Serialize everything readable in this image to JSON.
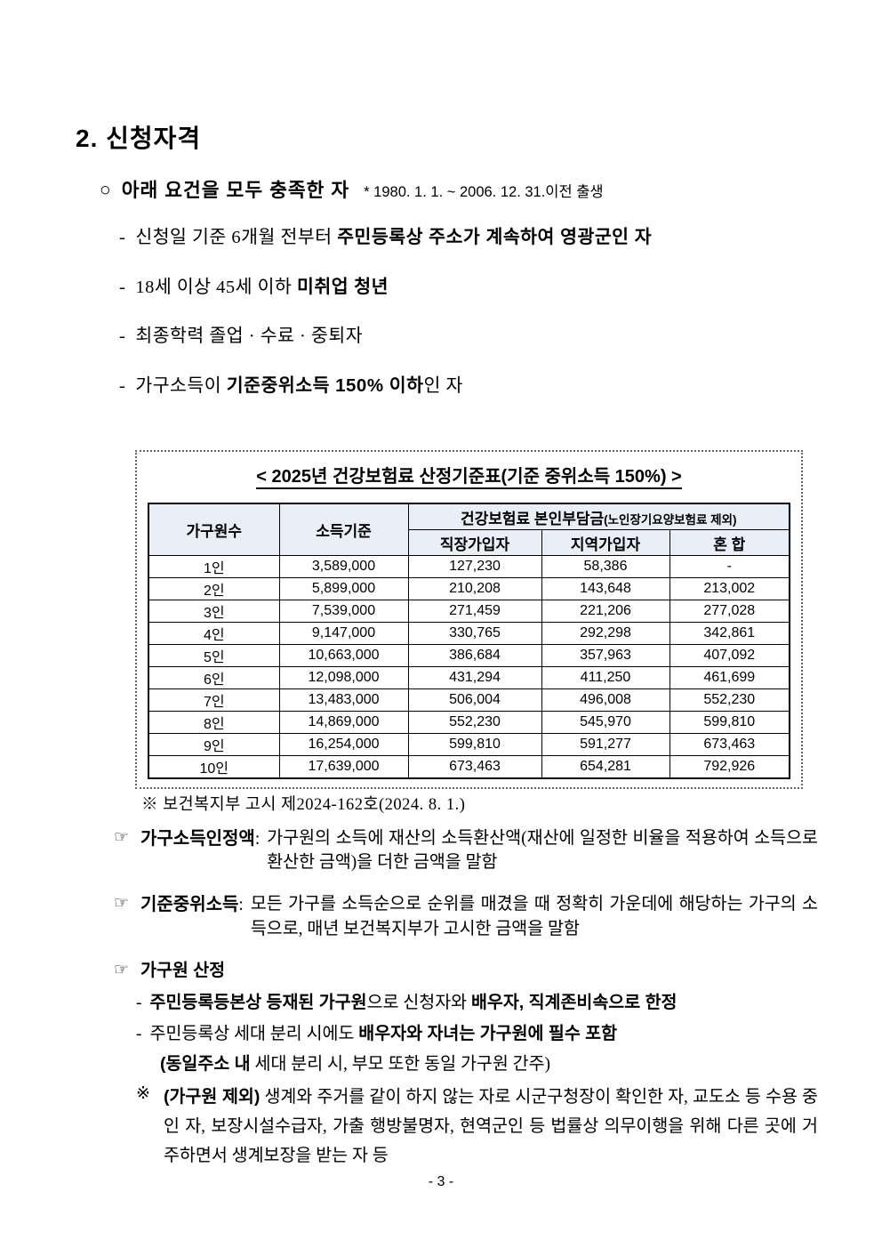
{
  "page": {
    "heading": "2. 신청자격",
    "page_number": "- 3 -"
  },
  "intro": {
    "bullet": "○",
    "text": "아래 요건을 모두 충족한 자",
    "note": "* 1980. 1. 1. ~ 2006. 12. 31.이전 출생"
  },
  "dash": "-",
  "requirements": [
    {
      "segments": [
        {
          "t": "신청일 기준 6개월 전부터 ",
          "b": 0
        },
        {
          "t": "주민등록상 주소가 계속하여 영광군인 자",
          "b": 1
        }
      ]
    },
    {
      "segments": [
        {
          "t": "18세 이상 45세 이하 ",
          "b": 0
        },
        {
          "t": "미취업 청년",
          "b": 1
        }
      ]
    },
    {
      "segments": [
        {
          "t": "최종학력 졸업 · 수료 · 중퇴자",
          "b": 0
        }
      ]
    },
    {
      "segments": [
        {
          "t": "가구소득이 ",
          "b": 0
        },
        {
          "t": "기준중위소득 150% 이하",
          "b": 1
        },
        {
          "t": "인 자",
          "b": 0
        }
      ]
    }
  ],
  "box": {
    "title": "< 2025년 건강보험료 산정기준표(기준 중위소득 150%) >",
    "table": {
      "header": {
        "household": "가구원수",
        "income": "소득기준",
        "group_main": "건강보험료 본인부담금",
        "group_sub": "(노인장기요양보험료 제외)",
        "subcols": {
          "employee": "직장가입자",
          "regional": "지역가입자",
          "mixed": "혼 합"
        }
      },
      "rows": [
        [
          "1인",
          "3,589,000",
          "127,230",
          "58,386",
          "-"
        ],
        [
          "2인",
          "5,899,000",
          "210,208",
          "143,648",
          "213,002"
        ],
        [
          "3인",
          "7,539,000",
          "271,459",
          "221,206",
          "277,028"
        ],
        [
          "4인",
          "9,147,000",
          "330,765",
          "292,298",
          "342,861"
        ],
        [
          "5인",
          "10,663,000",
          "386,684",
          "357,963",
          "407,092"
        ],
        [
          "6인",
          "12,098,000",
          "431,294",
          "411,250",
          "461,699"
        ],
        [
          "7인",
          "13,483,000",
          "506,004",
          "496,008",
          "552,230"
        ],
        [
          "8인",
          "14,869,000",
          "552,230",
          "545,970",
          "599,810"
        ],
        [
          "9인",
          "16,254,000",
          "599,810",
          "591,277",
          "673,463"
        ],
        [
          "10인",
          "17,639,000",
          "673,463",
          "654,281",
          "792,926"
        ]
      ]
    }
  },
  "notes": {
    "gosi": "※ 보건복지부 고시 제2024-162호(2024. 8. 1.)",
    "marker": "☞",
    "item1": {
      "title": "가구소득인정액",
      "colon": ":",
      "body": "가구원의 소득에 재산의 소득환산액(재산에 일정한 비율을 적용하여 소득으로 환산한 금액)을 더한 금액을 말함"
    },
    "item2": {
      "title": "기준중위소득",
      "colon": ":",
      "body": "모든 가구를 소득순으로 순위를 매겼을 때 정확히 가운데에 해당하는 가구의 소득으로, 매년 보건복지부가 고시한 금액을 말함"
    },
    "item3": {
      "title": "가구원 산정",
      "sub1": {
        "segments": [
          {
            "t": "주민등록등본상 등재된 가구원",
            "b": 1
          },
          {
            "t": "으로 신청자와 ",
            "b": 0
          },
          {
            "t": "배우자, 직계존비속으로 한정",
            "b": 1
          }
        ]
      },
      "sub2": {
        "segments": [
          {
            "t": "주민등록상 세대 분리 시에도 ",
            "b": 0
          },
          {
            "t": "배우자와 자녀는 가구원에 필수 포함",
            "b": 1
          }
        ]
      },
      "sub3": {
        "segments": [
          {
            "t": "(동일주소 내",
            "b": 1
          },
          {
            "t": " 세대 분리 시, 부모 또한 동일 가구원 간주)",
            "b": 0
          }
        ]
      },
      "exclusion": {
        "marker": "※",
        "segments": [
          {
            "t": "(가구원 제외)",
            "b": 1
          },
          {
            "t": " 생계와 주거를 같이 하지 않는 자로 시군구청장이 확인한 자, 교도소 등 수용 중인 자, 보장시설수급자, 가출 행방불명자, 현역군인 등 법률상 의무이행을 위해 다른 곳에 거주하면서 생계보장을 받는 자 등",
            "b": 0
          }
        ]
      }
    }
  },
  "colors": {
    "table_header_bg": "#e9eff7",
    "table_border": "#000000",
    "text": "#000000"
  }
}
